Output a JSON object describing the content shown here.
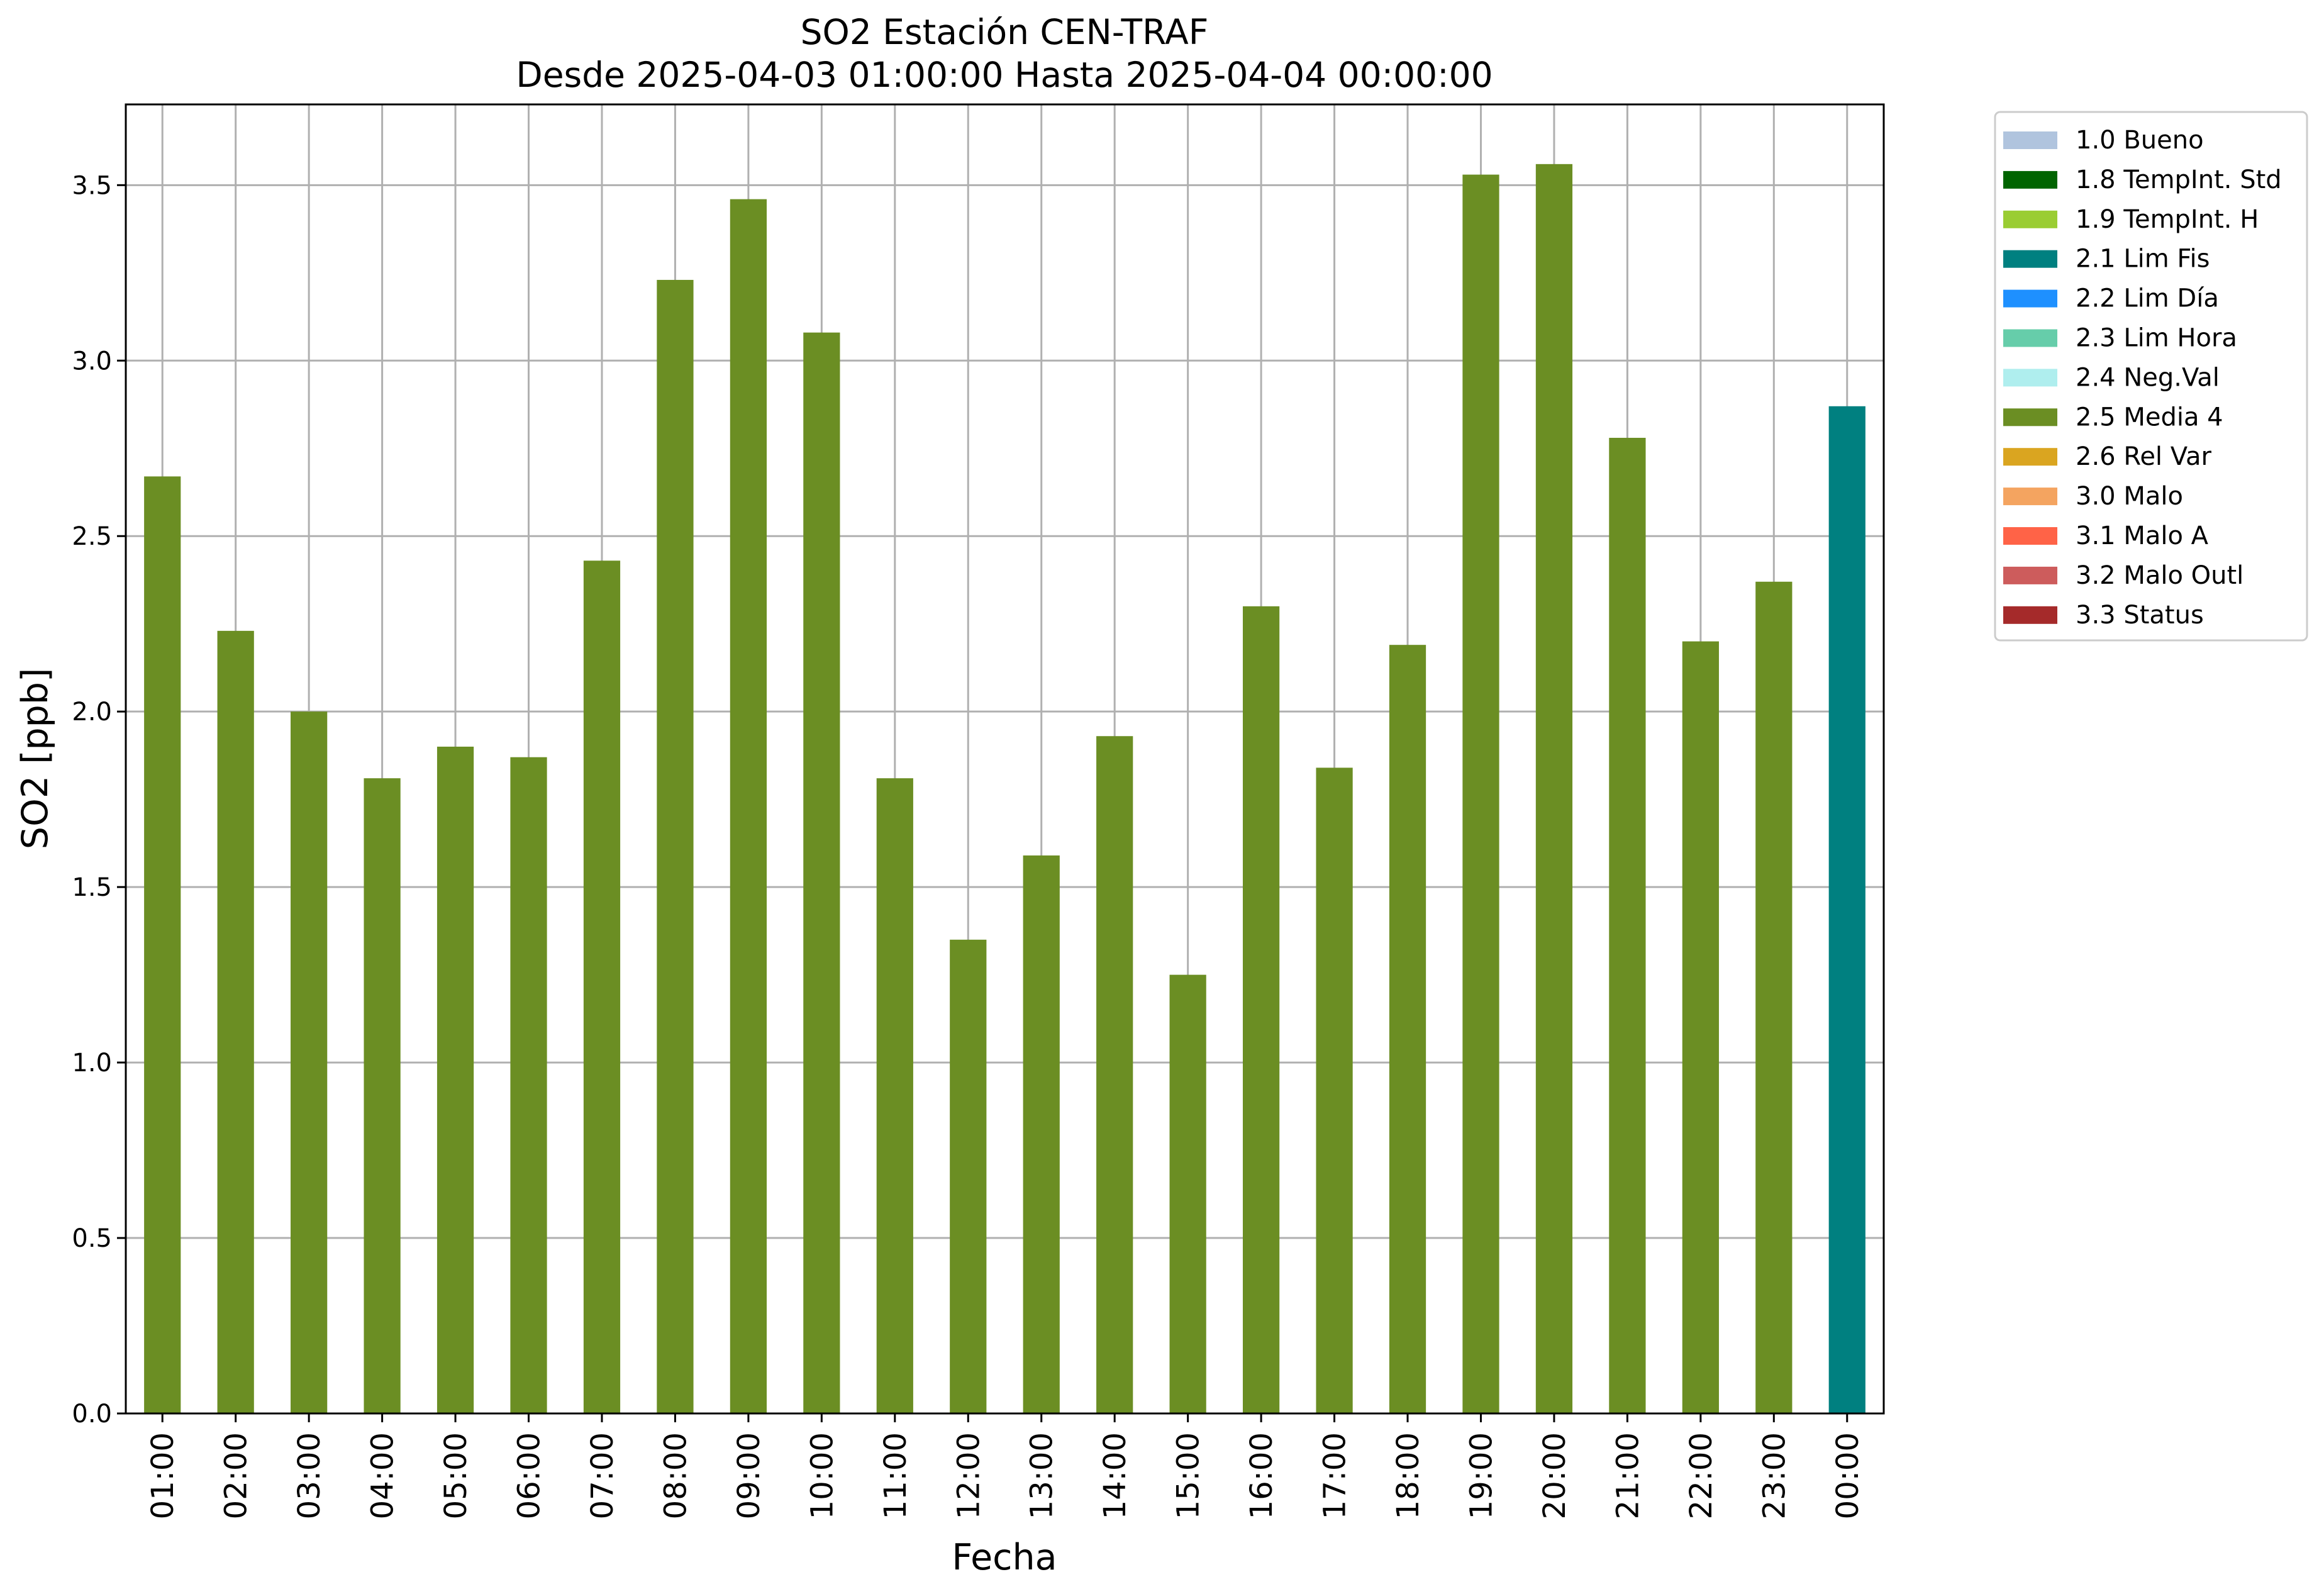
{
  "chart_data": {
    "type": "bar",
    "title": "SO2 Estación CEN-TRAF",
    "subtitle": "Desde 2025-04-03 01:00:00 Hasta 2025-04-04 00:00:00",
    "xlabel": "Fecha",
    "ylabel": "SO2 [ppb]",
    "ylim": [
      0,
      3.73
    ],
    "yticks": [
      "0.0",
      "0.5",
      "1.0",
      "1.5",
      "2.0",
      "2.5",
      "3.0",
      "3.5"
    ],
    "grid": true,
    "legend_position": "outside-top-right",
    "categories": [
      "01:00",
      "02:00",
      "03:00",
      "04:00",
      "05:00",
      "06:00",
      "07:00",
      "08:00",
      "09:00",
      "10:00",
      "11:00",
      "12:00",
      "13:00",
      "14:00",
      "15:00",
      "16:00",
      "17:00",
      "18:00",
      "19:00",
      "20:00",
      "21:00",
      "22:00",
      "23:00",
      "00:00"
    ],
    "values": [
      2.67,
      2.23,
      2.0,
      1.81,
      1.9,
      1.87,
      2.43,
      3.23,
      3.46,
      3.08,
      1.81,
      1.35,
      1.59,
      1.93,
      1.25,
      2.3,
      1.84,
      2.19,
      3.53,
      3.56,
      2.78,
      2.2,
      2.37,
      2.87
    ],
    "flags": [
      "2.5 Media 4",
      "2.5 Media 4",
      "2.5 Media 4",
      "2.5 Media 4",
      "2.5 Media 4",
      "2.5 Media 4",
      "2.5 Media 4",
      "2.5 Media 4",
      "2.5 Media 4",
      "2.5 Media 4",
      "2.5 Media 4",
      "2.5 Media 4",
      "2.5 Media 4",
      "2.5 Media 4",
      "2.5 Media 4",
      "2.5 Media 4",
      "2.5 Media 4",
      "2.5 Media 4",
      "2.5 Media 4",
      "2.5 Media 4",
      "2.5 Media 4",
      "2.5 Media 4",
      "2.5 Media 4",
      "2.1 Lim Fis"
    ],
    "legend": [
      {
        "name": "1.0 Bueno",
        "color": "#b0c4de"
      },
      {
        "name": "1.8 TempInt. Std",
        "color": "#006400"
      },
      {
        "name": "1.9 TempInt. H",
        "color": "#9acd32"
      },
      {
        "name": "2.1 Lim Fis",
        "color": "#008080"
      },
      {
        "name": "2.2 Lim Día",
        "color": "#1e90ff"
      },
      {
        "name": "2.3 Lim Hora",
        "color": "#66cdaa"
      },
      {
        "name": "2.4 Neg.Val",
        "color": "#afeeee"
      },
      {
        "name": "2.5 Media 4",
        "color": "#6b8e23"
      },
      {
        "name": "2.6 Rel Var",
        "color": "#daa520"
      },
      {
        "name": "3.0 Malo",
        "color": "#f4a460"
      },
      {
        "name": "3.1 Malo A",
        "color": "#ff6347"
      },
      {
        "name": "3.2 Malo Outl",
        "color": "#cd5c5c"
      },
      {
        "name": "3.3 Status",
        "color": "#a52a2a"
      }
    ]
  }
}
